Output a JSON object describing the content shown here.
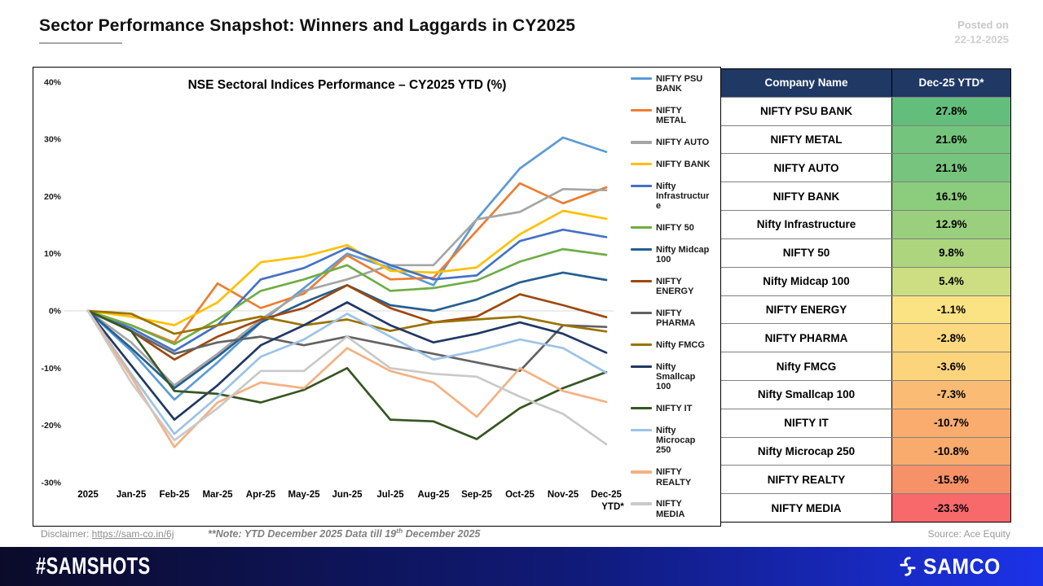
{
  "header": {
    "title": "Sector Performance Snapshot: Winners and Laggards in CY2025",
    "posted_on_label": "Posted on",
    "posted_on_date": "22-12-2025"
  },
  "chart_data": {
    "type": "line",
    "title": "NSE Sectoral Indices Performance – CY2025 YTD (%)",
    "categories": [
      "2025",
      "Jan-25",
      "Feb-25",
      "Mar-25",
      "Apr-25",
      "May-25",
      "Jun-25",
      "Jul-25",
      "Aug-25",
      "Sep-25",
      "Oct-25",
      "Nov-25",
      "Dec-25 YTD*"
    ],
    "ylim": [
      -30,
      40
    ],
    "y_tick_values": [
      40,
      30,
      20,
      10,
      0,
      -10,
      -20,
      -30
    ],
    "y_tick_labels": [
      "40%",
      "30%",
      "20%",
      "10%",
      "0%",
      "-10%",
      "-20%",
      "-30%"
    ],
    "grid": "zero-line-only",
    "legend_position": "right",
    "xlabel": "",
    "ylabel": "",
    "series": [
      {
        "name": "NIFTY PSU BANK",
        "color": "#5B9BD5",
        "values": [
          0,
          -7,
          -15.5,
          -9,
          -2,
          4,
          10,
          7.5,
          4.5,
          16,
          24.9,
          30.3,
          27.8
        ]
      },
      {
        "name": "NIFTY METAL",
        "color": "#ED7D31",
        "values": [
          0,
          -2.5,
          -5.5,
          4.8,
          0.5,
          3,
          9.7,
          5.5,
          5.8,
          14,
          22.3,
          18.8,
          21.6
        ]
      },
      {
        "name": "NIFTY AUTO",
        "color": "#A5A5A5",
        "values": [
          0,
          -5.5,
          -13,
          -7.5,
          -1.5,
          3.5,
          5.5,
          8,
          8,
          16,
          17.3,
          21.3,
          21.1
        ]
      },
      {
        "name": "NIFTY BANK",
        "color": "#FFC000",
        "values": [
          0,
          -1,
          -2.5,
          1.5,
          8.5,
          9.5,
          11.5,
          7,
          6.7,
          7.6,
          13.4,
          17.5,
          16.1
        ]
      },
      {
        "name": "Nifty Infrastructure",
        "color": "#4472C4",
        "values": [
          0,
          -3,
          -7,
          -2.5,
          5.5,
          7.5,
          11,
          8,
          5.5,
          6.2,
          12.2,
          14.2,
          12.9
        ]
      },
      {
        "name": "NIFTY 50",
        "color": "#70AD47",
        "values": [
          0,
          -2.5,
          -5.8,
          -1.5,
          3.5,
          5.5,
          8,
          3.5,
          4,
          5.3,
          8.6,
          10.8,
          9.8
        ]
      },
      {
        "name": "Nifty Midcap 100",
        "color": "#255E91",
        "values": [
          0,
          -6.5,
          -13.5,
          -8,
          -2,
          1.5,
          4.5,
          1,
          0,
          2,
          5,
          6.7,
          5.4
        ]
      },
      {
        "name": "NIFTY ENERGY",
        "color": "#9E480E",
        "values": [
          0,
          -3.5,
          -8.5,
          -4.5,
          -1.5,
          0.5,
          4.5,
          0.5,
          -2,
          -1,
          2.9,
          1,
          -1.1
        ]
      },
      {
        "name": "NIFTY PHARMA",
        "color": "#636363",
        "values": [
          0,
          -3.5,
          -7.5,
          -5.5,
          -4.5,
          -6,
          -4.5,
          -6,
          -7.5,
          -9,
          -10.5,
          -2.5,
          -2.8
        ]
      },
      {
        "name": "Nifty FMCG",
        "color": "#997300",
        "values": [
          0,
          -0.5,
          -4,
          -2.5,
          -1,
          -2.5,
          -1.5,
          -3.5,
          -2,
          -1.5,
          -1,
          -2.5,
          -3.6
        ]
      },
      {
        "name": "Nifty Smallcap 100",
        "color": "#203864",
        "values": [
          0,
          -9.5,
          -19,
          -13,
          -6,
          -2.5,
          1.5,
          -2.5,
          -5.5,
          -4,
          -2,
          -4,
          -7.3
        ]
      },
      {
        "name": "NIFTY IT",
        "color": "#375623",
        "values": [
          0,
          -3.5,
          -14,
          -14.5,
          -16,
          -13.8,
          -10,
          -19,
          -19.3,
          -22.4,
          -17,
          -13.5,
          -10.7
        ]
      },
      {
        "name": "Nifty Microcap 250",
        "color": "#9DC3E6",
        "values": [
          0,
          -11,
          -21.5,
          -15,
          -8,
          -5,
          -0.5,
          -4.5,
          -8.5,
          -7,
          -5,
          -6.5,
          -10.8
        ]
      },
      {
        "name": "NIFTY REALTY",
        "color": "#F4B183",
        "values": [
          0,
          -11.5,
          -23.8,
          -16,
          -12.5,
          -13.5,
          -6.5,
          -10.5,
          -12.5,
          -18.5,
          -10,
          -14,
          -15.9
        ]
      },
      {
        "name": "NIFTY MEDIA",
        "color": "#C9C9C9",
        "values": [
          0,
          -12.5,
          -22.6,
          -17,
          -10.5,
          -10.5,
          -4.5,
          -10,
          -11,
          -11.5,
          -15,
          -18,
          -23.3
        ]
      }
    ]
  },
  "table": {
    "headers": [
      "Company Name",
      "Dec-25 YTD*"
    ],
    "header_bg": "#1F3864",
    "rows": [
      {
        "name": "NIFTY PSU BANK",
        "value": "27.8%",
        "color": "#63BE7B"
      },
      {
        "name": "NIFTY METAL",
        "value": "21.6%",
        "color": "#74C47D"
      },
      {
        "name": "NIFTY AUTO",
        "value": "21.1%",
        "color": "#76C47D"
      },
      {
        "name": "NIFTY BANK",
        "value": "16.1%",
        "color": "#8CCC7D"
      },
      {
        "name": "Nifty Infrastructure",
        "value": "12.9%",
        "color": "#9AD07D"
      },
      {
        "name": "NIFTY 50",
        "value": "9.8%",
        "color": "#ACD57D"
      },
      {
        "name": "Nifty Midcap 100",
        "value": "5.4%",
        "color": "#CCDE81"
      },
      {
        "name": "NIFTY ENERGY",
        "value": "-1.1%",
        "color": "#FBE283"
      },
      {
        "name": "NIFTY PHARMA",
        "value": "-2.8%",
        "color": "#FCD97E"
      },
      {
        "name": "Nifty FMCG",
        "value": "-3.6%",
        "color": "#FBD47C"
      },
      {
        "name": "Nifty Smallcap 100",
        "value": "-7.3%",
        "color": "#FABB75"
      },
      {
        "name": "NIFTY IT",
        "value": "-10.7%",
        "color": "#F9AC6E"
      },
      {
        "name": "Nifty Microcap 250",
        "value": "-10.8%",
        "color": "#F9AB6E"
      },
      {
        "name": "NIFTY REALTY",
        "value": "-15.9%",
        "color": "#F79168"
      },
      {
        "name": "NIFTY MEDIA",
        "value": "-23.3%",
        "color": "#F8696B"
      }
    ]
  },
  "footnotes": {
    "disclaimer_label": "Disclaimer: ",
    "disclaimer_link": "https://sam-co.in/6j",
    "note_prefix": "**Note: YTD December 2025 Data till 19",
    "note_sup": "th",
    "note_suffix": " December 2025",
    "source": "Source: Ace Equity"
  },
  "footer": {
    "hashtag": "#SAMSHOTS",
    "brand": "SAMCO"
  }
}
